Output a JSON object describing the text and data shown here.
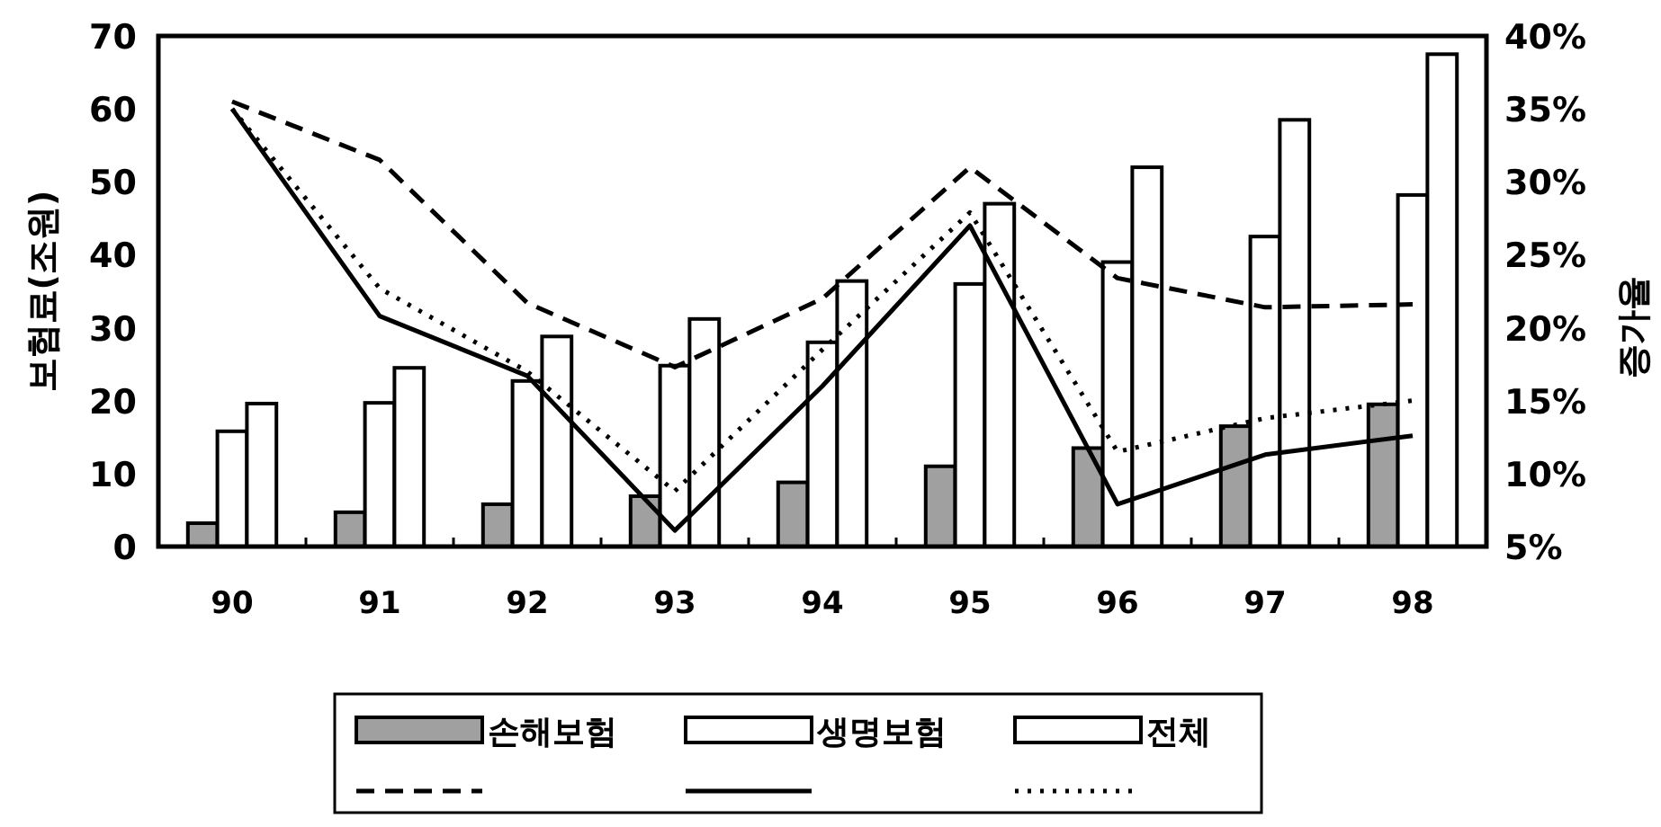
{
  "chart_data": {
    "type": "bar",
    "ylabel": "보험료(조원)",
    "y2label": "증가율",
    "categories": [
      "90",
      "91",
      "92",
      "93",
      "94",
      "95",
      "96",
      "97",
      "98"
    ],
    "ylim": [
      0,
      70
    ],
    "yticks": [
      0,
      10,
      20,
      30,
      40,
      50,
      60,
      70
    ],
    "y2lim": [
      5,
      40
    ],
    "y2ticks": [
      {
        "value": 5,
        "label": "5%"
      },
      {
        "value": 10,
        "label": "10%"
      },
      {
        "value": 15,
        "label": "15%"
      },
      {
        "value": 20,
        "label": "20%"
      },
      {
        "value": 25,
        "label": "25%"
      },
      {
        "value": 30,
        "label": "30%"
      },
      {
        "value": 35,
        "label": "35%"
      },
      {
        "value": 40,
        "label": "40%"
      }
    ],
    "legend": "bottom",
    "series": [
      {
        "name": "손해보험",
        "color": "#a0a0a0",
        "values": [
          3.2,
          4.7,
          5.8,
          6.9,
          8.8,
          11,
          13.5,
          16.5,
          19.5
        ]
      },
      {
        "name": "생명보험",
        "color": "#ffffff",
        "values": [
          15.8,
          19.7,
          22.7,
          24.8,
          28,
          36,
          39,
          42.5,
          48.2
        ]
      },
      {
        "name": "전체",
        "color": "#ffffff",
        "values": [
          19.6,
          24.5,
          28.8,
          31.2,
          36.4,
          47,
          52,
          58.5,
          67.5
        ]
      },
      {
        "type": "line",
        "axis": "y2",
        "line_style": "dashed",
        "color": "#000000",
        "values": [
          35.5,
          31.5,
          21.7,
          17.3,
          22,
          31,
          23.4,
          21.4,
          21.6
        ]
      },
      {
        "type": "line",
        "axis": "y2",
        "line_style": "solid",
        "color": "#000000",
        "values": [
          35,
          20.8,
          16.7,
          6.1,
          16,
          27,
          7.9,
          11.3,
          12.6
        ]
      },
      {
        "type": "line",
        "axis": "y2",
        "line_style": "dotted",
        "color": "#000000",
        "values": [
          35,
          22.7,
          17,
          8.8,
          18.5,
          27.9,
          11.5,
          13.8,
          15
        ]
      }
    ]
  }
}
